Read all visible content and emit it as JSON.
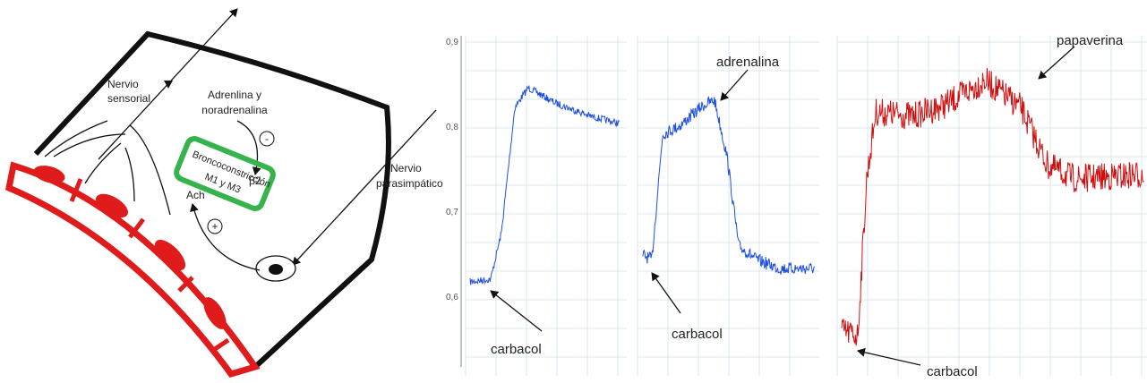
{
  "diagram": {
    "sensory_nerve": [
      "Nervio",
      "sensorial"
    ],
    "hormones": [
      "Adrenlina y",
      "noradrenalina"
    ],
    "inhibit": "-",
    "bronchoconstriction": "Broncoconstricción",
    "receptor_beta": "β2",
    "receptor_m": "M1 y M3",
    "ach": "Ach",
    "excite": "+",
    "parasympathetic_nerve": [
      "Nervio",
      "parasimpático"
    ]
  },
  "traces": {
    "y_axis_ticks": [
      "0,9",
      "0,8",
      "0,7",
      "0,6"
    ],
    "panels": [
      {
        "annotations": [
          "carbacol"
        ]
      },
      {
        "annotations": [
          "adrenalina",
          "carbacol"
        ]
      },
      {
        "annotations": [
          "papaverina",
          "carbacol"
        ]
      }
    ]
  }
}
